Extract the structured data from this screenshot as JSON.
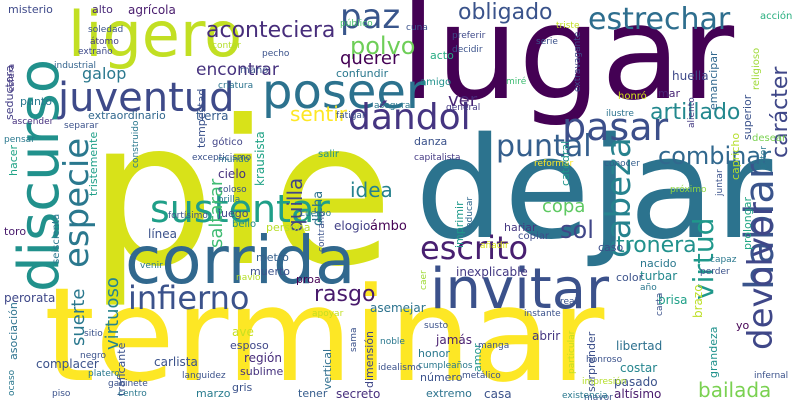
{
  "words": [
    {
      "text": "pie",
      "color": "#d8e219"
    },
    {
      "text": "dejar",
      "color": "#2c738e"
    },
    {
      "text": "lugar",
      "color": "#440154"
    },
    {
      "text": "terminar",
      "color": "#fde725"
    },
    {
      "text": "corrida",
      "color": "#31688e"
    },
    {
      "text": "invitar",
      "color": "#3b518b"
    },
    {
      "text": "ligero",
      "color": "#c2df23"
    },
    {
      "text": "discurso",
      "color": "#21918c"
    },
    {
      "text": "juventud",
      "color": "#3e4a89"
    },
    {
      "text": "poseer",
      "color": "#2c728e"
    },
    {
      "text": "dándol",
      "color": "#453581"
    },
    {
      "text": "pasar",
      "color": "#3c4f8a"
    },
    {
      "text": "sustentar",
      "color": "#1f9f88"
    },
    {
      "text": "especie",
      "color": "#2a788e"
    },
    {
      "text": "infierno",
      "color": "#3b528b"
    },
    {
      "text": "escrito",
      "color": "#481f70"
    },
    {
      "text": "cabeza",
      "color": "#26828e"
    },
    {
      "text": "hablar",
      "color": "#3a548c"
    },
    {
      "text": "devolver",
      "color": "#3f4788"
    },
    {
      "text": "paz",
      "color": "#39568c"
    },
    {
      "text": "estrechar",
      "color": "#2e6e8e"
    },
    {
      "text": "obligado",
      "color": "#3a538b"
    },
    {
      "text": "aconteciera",
      "color": "#472d7b"
    },
    {
      "text": "polvo",
      "color": "#6ece58"
    },
    {
      "text": "querer",
      "color": "#440154"
    },
    {
      "text": "encontrar",
      "color": "#46327e"
    },
    {
      "text": "galop",
      "color": "#2a788e"
    },
    {
      "text": "ver",
      "color": "#482576"
    },
    {
      "text": "sentir",
      "color": "#fde725"
    },
    {
      "text": "puntal",
      "color": "#355f8d"
    },
    {
      "text": "artillado",
      "color": "#23888e"
    },
    {
      "text": "carácter",
      "color": "#3f4788"
    },
    {
      "text": "combinar",
      "color": "#31688e"
    },
    {
      "text": "virtud",
      "color": "#1f988b"
    },
    {
      "text": "sol",
      "color": "#404688"
    },
    {
      "text": "copa",
      "color": "#5ec962"
    },
    {
      "text": "tronera",
      "color": "#21918c"
    },
    {
      "text": "idea",
      "color": "#26828e"
    },
    {
      "text": "quilla",
      "color": "#404688"
    },
    {
      "text": "saltarar",
      "color": "#3fbc73"
    },
    {
      "text": "rasgo",
      "color": "#481a6c"
    },
    {
      "text": "suerte",
      "color": "#2a788e"
    },
    {
      "text": "virtuoso",
      "color": "#25848e"
    },
    {
      "text": "bailada",
      "color": "#7ad151"
    },
    {
      "text": "ligero",
      "color": "#c2df23"
    },
    {
      "text": "agrícola",
      "color": "#481b6d"
    },
    {
      "text": "alto",
      "color": "#482878"
    },
    {
      "text": "misterio",
      "color": "#3e4989"
    },
    {
      "text": "seductora",
      "color": "#433e85"
    },
    {
      "text": "punto",
      "color": "#2a788e"
    },
    {
      "text": "extraordinario",
      "color": "#31688e"
    },
    {
      "text": "tierra",
      "color": "#365c8d"
    },
    {
      "text": "mano",
      "color": "#3b528b"
    },
    {
      "text": "confundir",
      "color": "#2a788e"
    },
    {
      "text": "amigo",
      "color": "#21918c"
    },
    {
      "text": "acto",
      "color": "#25ac82"
    },
    {
      "text": "huella",
      "color": "#3e4989"
    },
    {
      "text": "mar",
      "color": "#482475"
    },
    {
      "text": "emancipar",
      "color": "#31688e"
    },
    {
      "text": "superior",
      "color": "#3b528b"
    },
    {
      "text": "religioso",
      "color": "#a0da39"
    },
    {
      "text": "aliento",
      "color": "#443a83"
    },
    {
      "text": "desear",
      "color": "#7ad151"
    },
    {
      "text": "prolongar",
      "color": "#22a785"
    },
    {
      "text": "capricho",
      "color": "#b5de2b"
    },
    {
      "text": "autor",
      "color": "#2a788e"
    },
    {
      "text": "próximo",
      "color": "#8fd744"
    },
    {
      "text": "juntar",
      "color": "#3b528b"
    },
    {
      "text": "conocer",
      "color": "#355f8d"
    },
    {
      "text": "reformar",
      "color": "#fde725"
    },
    {
      "text": "capitalista",
      "color": "#443983"
    },
    {
      "text": "danza",
      "color": "#3b528b"
    },
    {
      "text": "krausista",
      "color": "#20a386"
    },
    {
      "text": "gótico",
      "color": "#414487"
    },
    {
      "text": "cielo",
      "color": "#46327e"
    },
    {
      "text": "juego",
      "color": "#3e4989"
    },
    {
      "text": "bello",
      "color": "#228c8d"
    },
    {
      "text": "dicha",
      "color": "#2c728e"
    },
    {
      "text": "persona",
      "color": "#b8de29"
    },
    {
      "text": "salir",
      "color": "#21918c"
    },
    {
      "text": "imprimir",
      "color": "#1f9a8a"
    },
    {
      "text": "educar",
      "color": "#30698e"
    },
    {
      "text": "hariar",
      "color": "#453781"
    },
    {
      "text": "copiar",
      "color": "#3e4c8a"
    },
    {
      "text": "elogio",
      "color": "#424086"
    },
    {
      "text": "ámbo",
      "color": "#440154"
    },
    {
      "text": "línea",
      "color": "#3b518b"
    },
    {
      "text": "metro",
      "color": "#355f8d"
    },
    {
      "text": "muerto",
      "color": "#3b528b"
    },
    {
      "text": "proa",
      "color": "#440154"
    },
    {
      "text": "inexplicable",
      "color": "#443983"
    },
    {
      "text": "nacido",
      "color": "#2a788e"
    },
    {
      "text": "turbar",
      "color": "#23898e"
    },
    {
      "text": "brisa",
      "color": "#1fa088"
    },
    {
      "text": "brazo",
      "color": "#bddf26"
    },
    {
      "text": "color",
      "color": "#3b528b"
    },
    {
      "text": "caso",
      "color": "#3d4d8a"
    },
    {
      "text": "perorata",
      "color": "#3f4889"
    },
    {
      "text": "asociación",
      "color": "#2c728e"
    },
    {
      "text": "complacer",
      "color": "#3b528b"
    },
    {
      "text": "carlista",
      "color": "#3b528b"
    },
    {
      "text": "región",
      "color": "#472c7a"
    },
    {
      "text": "sublime",
      "color": "#46327e"
    },
    {
      "text": "honor",
      "color": "#2a788e"
    },
    {
      "text": "jamás",
      "color": "#481f70"
    },
    {
      "text": "esposo",
      "color": "#3f4788"
    },
    {
      "text": "abrir",
      "color": "#453781"
    },
    {
      "text": "libertad",
      "color": "#2d708e"
    },
    {
      "text": "costar",
      "color": "#25858e"
    },
    {
      "text": "pasado",
      "color": "#3b528b"
    },
    {
      "text": "altísimo",
      "color": "#481a6c"
    },
    {
      "text": "extremo",
      "color": "#2c738e"
    },
    {
      "text": "casa",
      "color": "#3b528b"
    },
    {
      "text": "secreto",
      "color": "#472f7d"
    },
    {
      "text": "tener",
      "color": "#365d8d"
    },
    {
      "text": "gris",
      "color": "#3b528b"
    },
    {
      "text": "marzo",
      "color": "#287c8e"
    },
    {
      "text": "vertical",
      "color": "#2e6e8e"
    },
    {
      "text": "dimensión",
      "color": "#3f4788"
    },
    {
      "text": "número",
      "color": "#3b528b"
    },
    {
      "text": "amor",
      "color": "#1f968b"
    },
    {
      "text": "sorprender",
      "color": "#3c4f8a"
    },
    {
      "text": "grandeza",
      "color": "#20928c"
    },
    {
      "text": "yo",
      "color": "#440154"
    },
    {
      "text": "asemejar",
      "color": "#2c738e"
    },
    {
      "text": "ave",
      "color": "#c8e020"
    },
    {
      "text": "tempestad",
      "color": "#3b528b"
    },
    {
      "text": "tristemente",
      "color": "#1f9f88"
    },
    {
      "text": "toro",
      "color": "#481a6c"
    },
    {
      "text": "seiscienta",
      "color": "#2a788e"
    },
    {
      "text": "catedral",
      "color": "#1f958b"
    },
    {
      "text": "traficante",
      "color": "#3b528b"
    },
    {
      "text": "hacer",
      "color": "#20a386"
    },
    {
      "text": "pensar",
      "color": "#2a788e"
    },
    {
      "text": "ascender",
      "color": "#46307e"
    },
    {
      "text": "soledad",
      "color": "#3b528b"
    },
    {
      "text": "átomo",
      "color": "#433d84"
    },
    {
      "text": "extraño",
      "color": "#3e4a89"
    },
    {
      "text": "industrial",
      "color": "#33638d"
    },
    {
      "text": "esfera",
      "color": "#453882"
    },
    {
      "text": "contar",
      "color": "#b5de2b"
    },
    {
      "text": "pecho",
      "color": "#3b528b"
    },
    {
      "text": "criatura",
      "color": "#2c738e"
    },
    {
      "text": "público",
      "color": "#4ac16d"
    },
    {
      "text": "cuna",
      "color": "#3b528b"
    },
    {
      "text": "preferir",
      "color": "#3e4989"
    },
    {
      "text": "decidir",
      "color": "#3b528b"
    },
    {
      "text": "triste",
      "color": "#c2df23"
    },
    {
      "text": "acción",
      "color": "#29af7f"
    },
    {
      "text": "serie",
      "color": "#3b528b"
    },
    {
      "text": "miré",
      "color": "#3fbc73"
    },
    {
      "text": "extravagante",
      "color": "#3e4989"
    },
    {
      "text": "honró",
      "color": "#d2e21b"
    },
    {
      "text": "ilustre",
      "color": "#2c738e"
    },
    {
      "text": "asegurar",
      "color": "#2a788e"
    },
    {
      "text": "general",
      "color": "#443983"
    },
    {
      "text": "fatigar",
      "color": "#3b528b"
    },
    {
      "text": "separar",
      "color": "#3b528b"
    },
    {
      "text": "excepticismo",
      "color": "#3b528b"
    },
    {
      "text": "construido",
      "color": "#2a788e"
    },
    {
      "text": "mundo",
      "color": "#2c738e"
    },
    {
      "text": "coloso",
      "color": "#3b528b"
    },
    {
      "text": "orilla",
      "color": "#2a788e"
    },
    {
      "text": "fortísimo",
      "color": "#3b528b"
    },
    {
      "text": "cuerpo",
      "color": "#2a788e"
    },
    {
      "text": "contrario",
      "color": "#3b528b"
    },
    {
      "text": "añadir",
      "color": "#d8e219"
    },
    {
      "text": "venir",
      "color": "#2a788e"
    },
    {
      "text": "navío",
      "color": "#b5de2b"
    },
    {
      "text": "caer",
      "color": "#a0da39"
    },
    {
      "text": "apoyar",
      "color": "#c2df23"
    },
    {
      "text": "instante",
      "color": "#3b528b"
    },
    {
      "text": "real",
      "color": "#3b528b"
    },
    {
      "text": "año",
      "color": "#2a788e"
    },
    {
      "text": "perder",
      "color": "#3b528b"
    },
    {
      "text": "carta",
      "color": "#3b528b"
    },
    {
      "text": "capaz",
      "color": "#2a788e"
    },
    {
      "text": "susto",
      "color": "#3b528b"
    },
    {
      "text": "manga",
      "color": "#3b528b"
    },
    {
      "text": "noble",
      "color": "#2a788e"
    },
    {
      "text": "sitio",
      "color": "#3b528b"
    },
    {
      "text": "negro",
      "color": "#3b528b"
    },
    {
      "text": "platero",
      "color": "#2a788e"
    },
    {
      "text": "gabinete",
      "color": "#3b528b"
    },
    {
      "text": "piso",
      "color": "#3b528b"
    },
    {
      "text": "centro",
      "color": "#2a788e"
    },
    {
      "text": "languidez",
      "color": "#3b528b"
    },
    {
      "text": "idealismo",
      "color": "#3b528b"
    },
    {
      "text": "sama",
      "color": "#3b528b"
    },
    {
      "text": "cumpleaños",
      "color": "#2a788e"
    },
    {
      "text": "metálico",
      "color": "#3b528b"
    },
    {
      "text": "particular",
      "color": "#c2df23"
    },
    {
      "text": "impresión",
      "color": "#b5de2b"
    },
    {
      "text": "mayor",
      "color": "#3b528b"
    },
    {
      "text": "honroso",
      "color": "#3b528b"
    },
    {
      "text": "infernal",
      "color": "#3b528b"
    },
    {
      "text": "ocaso",
      "color": "#2a788e"
    },
    {
      "text": "existencia",
      "color": "#2a788e"
    },
    {
      "text": "ameno",
      "color": "#3b528b"
    }
  ]
}
